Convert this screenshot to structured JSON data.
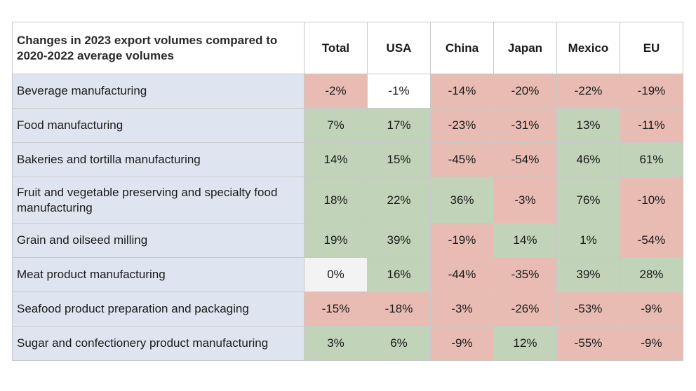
{
  "chart_data": {
    "type": "table",
    "title": "Changes in 2023 export volumes compared to 2020-2022 average volumes",
    "columns": [
      "Total",
      "USA",
      "China",
      "Japan",
      "Mexico",
      "EU"
    ],
    "rows": [
      {
        "label": "Beverage manufacturing",
        "values": [
          "-2%",
          "-1%",
          "-14%",
          "-20%",
          "-22%",
          "-19%"
        ]
      },
      {
        "label": "Food manufacturing",
        "values": [
          "7%",
          "17%",
          "-23%",
          "-31%",
          "13%",
          "-11%"
        ]
      },
      {
        "label": "Bakeries and tortilla manufacturing",
        "values": [
          "14%",
          "15%",
          "-45%",
          "-54%",
          "46%",
          "61%"
        ]
      },
      {
        "label": "Fruit and vegetable preserving and specialty food manufacturing",
        "values": [
          "18%",
          "22%",
          "36%",
          "-3%",
          "76%",
          "-10%"
        ]
      },
      {
        "label": "Grain and oilseed milling",
        "values": [
          "19%",
          "39%",
          "-19%",
          "14%",
          "1%",
          "-54%"
        ]
      },
      {
        "label": "Meat product manufacturing",
        "values": [
          "0%",
          "16%",
          "-44%",
          "-35%",
          "39%",
          "28%"
        ]
      },
      {
        "label": "Seafood product preparation and packaging",
        "values": [
          "-15%",
          "-18%",
          "-3%",
          "-26%",
          "-53%",
          "-9%"
        ]
      },
      {
        "label": "Sugar and confectionery product manufacturing",
        "values": [
          "3%",
          "6%",
          "-9%",
          "12%",
          "-55%",
          "-9%"
        ]
      }
    ],
    "cell_colors": {
      "positive": "#c1d3b8",
      "negative": "#e8bcb2",
      "near_zero": "#ffffff",
      "zero": "#f3f3f3",
      "label_bg": "#dfe5f0"
    }
  }
}
